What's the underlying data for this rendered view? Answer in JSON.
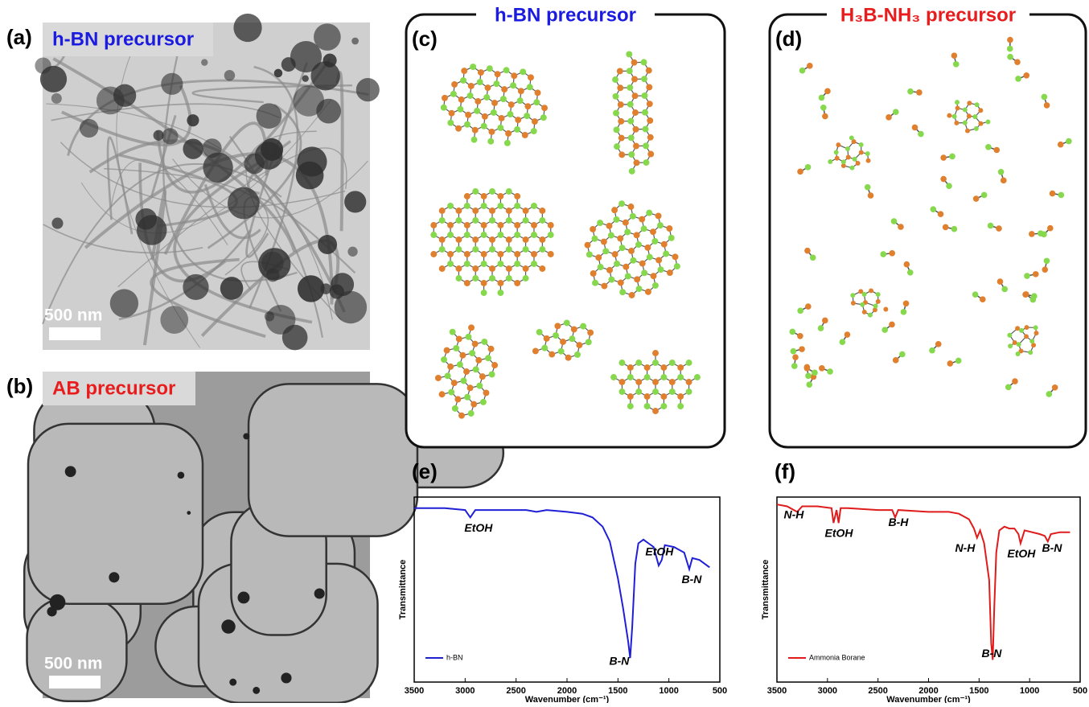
{
  "panels": {
    "a": {
      "label": "(a)",
      "title": "h-BN precursor",
      "scale_bar": "500 nm"
    },
    "b": {
      "label": "(b)",
      "title": "AB precursor",
      "scale_bar": "500 nm"
    },
    "c": {
      "label": "(c)",
      "title": "h-BN precursor"
    },
    "d": {
      "label": "(d)",
      "title": "H₃B-NH₃ precursor"
    }
  },
  "chart_data": [
    {
      "type": "line",
      "panel_label": "(e)",
      "xlabel": "Wavenumber (cm⁻¹)",
      "ylabel": "Transmittance",
      "xlim": [
        3500,
        500
      ],
      "xticks": [
        3500,
        3000,
        2500,
        2000,
        1500,
        1000,
        500
      ],
      "ylim": [
        0,
        100
      ],
      "legend": "lower left",
      "x": [
        3500,
        3200,
        3000,
        2950,
        2900,
        2700,
        2400,
        2300,
        2200,
        2000,
        1850,
        1750,
        1650,
        1580,
        1500,
        1450,
        1400,
        1380,
        1360,
        1330,
        1300,
        1250,
        1200,
        1150,
        1100,
        1070,
        1040,
        950,
        850,
        800,
        770,
        700,
        600
      ],
      "series": [
        {
          "name": "h-BN",
          "color": "#1f1fd6",
          "values": [
            94,
            94,
            93,
            89,
            93,
            93,
            93,
            92,
            93,
            92,
            91,
            89,
            84,
            76,
            56,
            40,
            22,
            13,
            30,
            64,
            75,
            77,
            75,
            73,
            63,
            66,
            74,
            73,
            70,
            61,
            67,
            66,
            62
          ]
        }
      ],
      "annotations": [
        {
          "text": "EtOH",
          "x": 2869,
          "y": 83
        },
        {
          "text": "B-N",
          "x": 1487,
          "y": 11
        },
        {
          "text": "EtOH",
          "x": 1093,
          "y": 70
        },
        {
          "text": "B-N",
          "x": 777,
          "y": 55
        }
      ]
    },
    {
      "type": "line",
      "panel_label": "(f)",
      "xlabel": "Wavenumber (cm⁻¹)",
      "ylabel": "Transmittance",
      "xlim": [
        3500,
        500
      ],
      "xticks": [
        3500,
        3000,
        2500,
        2000,
        1500,
        1000,
        500
      ],
      "ylim": [
        0,
        100
      ],
      "legend": "lower left",
      "x": [
        3500,
        3400,
        3300,
        3250,
        3100,
        2960,
        2940,
        2910,
        2890,
        2870,
        2800,
        2500,
        2360,
        2330,
        2300,
        2000,
        1800,
        1700,
        1600,
        1550,
        1520,
        1490,
        1450,
        1400,
        1380,
        1365,
        1350,
        1330,
        1300,
        1250,
        1200,
        1150,
        1110,
        1090,
        1050,
        900,
        850,
        820,
        790,
        700,
        600
      ],
      "series": [
        {
          "name": "Ammonia Borane",
          "color": "#e01b1b",
          "values": [
            96,
            95,
            92,
            95,
            95,
            94,
            86,
            93,
            86,
            94,
            94,
            93,
            93,
            89,
            93,
            92,
            92,
            91,
            88,
            83,
            78,
            82,
            75,
            55,
            21,
            12,
            40,
            70,
            82,
            84,
            83,
            83,
            80,
            75,
            82,
            80,
            79,
            76,
            80,
            81,
            81
          ]
        }
      ],
      "annotations": [
        {
          "text": "N-H",
          "x": 3333,
          "y": 90
        },
        {
          "text": "EtOH",
          "x": 2887,
          "y": 80
        },
        {
          "text": "B-H",
          "x": 2299,
          "y": 86
        },
        {
          "text": "N-H",
          "x": 1638,
          "y": 72
        },
        {
          "text": "EtOH",
          "x": 1082,
          "y": 69
        },
        {
          "text": "B-N",
          "x": 779,
          "y": 72
        },
        {
          "text": "B-N",
          "x": 1376,
          "y": 15
        }
      ]
    }
  ]
}
